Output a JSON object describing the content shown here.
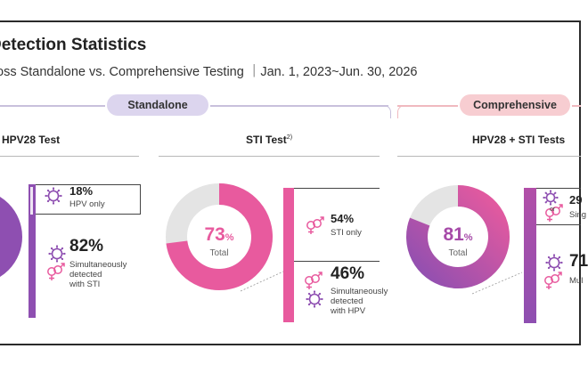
{
  "header": {
    "title": "Detection Statistics",
    "subtitle": "oss Standalone vs. Comprehensive Testing ｜Jan. 1, 2023~Jun. 30, 2026"
  },
  "groups": {
    "standalone": "Standalone",
    "comprehensive": "Comprehensive"
  },
  "colors": {
    "purple": "#8e4fb1",
    "pink": "#e85a9e",
    "gray": "#e4e4e4",
    "lavender": "#dcd5ee",
    "rose": "#f7cdd1"
  },
  "chart_data": [
    {
      "type": "pie",
      "title": "HPV28 Test",
      "segments": [
        {
          "label": "HPV only",
          "value": 18,
          "icon": "virus-icon"
        },
        {
          "label": "Simultaneously detected with STI",
          "value": 82,
          "icon": "virus-gender-icon"
        }
      ]
    },
    {
      "type": "pie",
      "title": "STI Test",
      "footnote": "2)",
      "total": {
        "value": 73,
        "unit": "%",
        "label": "Total"
      },
      "segments": [
        {
          "label": "STI only",
          "value": 54,
          "icon": "gender-symbols-icon"
        },
        {
          "label": "Simultaneously detected with HPV",
          "value": 46,
          "icon": "gender-virus-icon"
        }
      ]
    },
    {
      "type": "pie",
      "title": "HPV28 + STI Tests",
      "total": {
        "value": 81,
        "unit": "%",
        "label": "Total"
      },
      "segments": [
        {
          "label": "Sing",
          "value_text": "29",
          "icon": "virus-or-gender-icon"
        },
        {
          "label": "Mul",
          "value_text": "71",
          "icon": "virus-gender-icon"
        }
      ]
    }
  ],
  "labels": {
    "p1_v1": "18%",
    "p1_l1": "HPV only",
    "p1_v2": "82%",
    "p1_l2a": "Simultaneously",
    "p1_l2b": "detected",
    "p1_l2c": "with STI",
    "p2_v1": "54%",
    "p2_l1": "STI only",
    "p2_v2": "46%",
    "p2_l2a": "Simultaneously",
    "p2_l2b": "detected",
    "p2_l2c": "with HPV",
    "p3_v1": "29",
    "p3_or": "or",
    "p3_l1": "Sing",
    "p3_v2": "71",
    "p3_l2": "Mul"
  }
}
